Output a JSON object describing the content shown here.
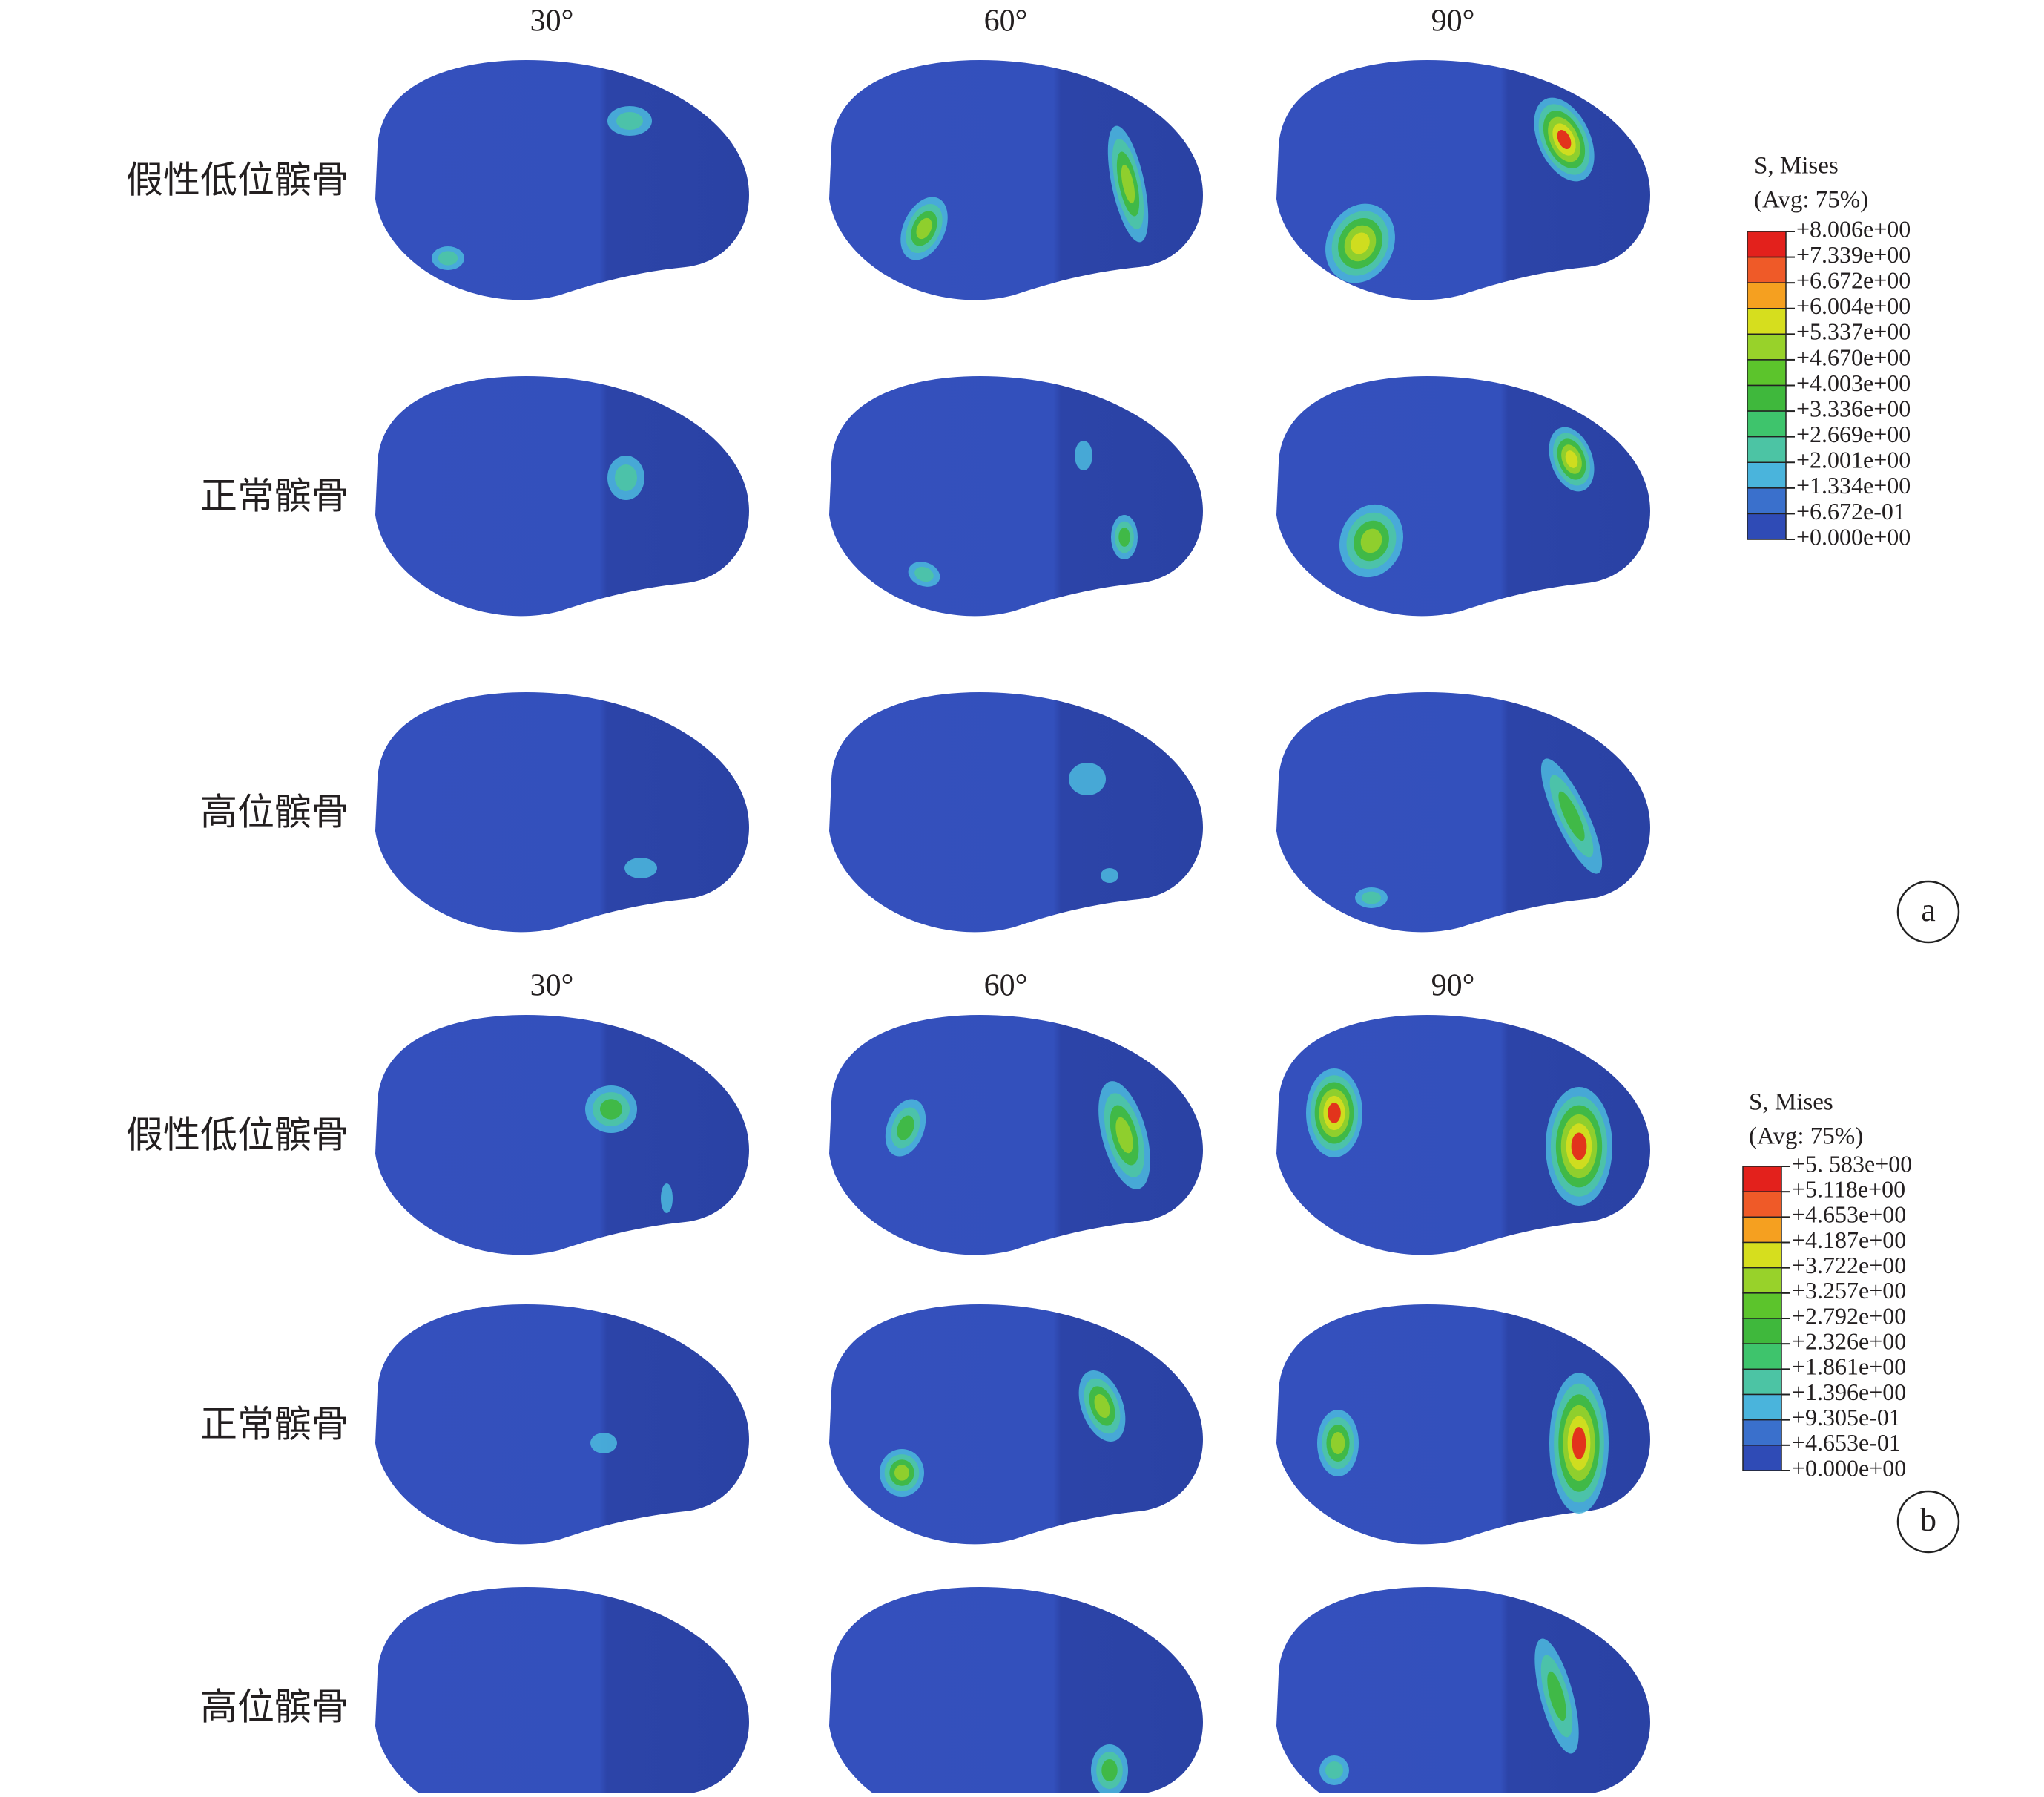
{
  "panels": [
    {
      "label": "a",
      "columns": [
        "30°",
        "60°",
        "90°"
      ],
      "rows": [
        "假性低位髌骨",
        "正常髌骨",
        "高位髌骨"
      ],
      "legend": {
        "title": "S, Mises",
        "subtitle": "(Avg: 75%)",
        "labels": [
          "+8.006e+00",
          "+7.339e+00",
          "+6.672e+00",
          "+6.004e+00",
          "+5.337e+00",
          "+4.670e+00",
          "+4.003e+00",
          "+3.336e+00",
          "+2.669e+00",
          "+2.001e+00",
          "+1.334e+00",
          "+6.672e-01",
          "+0.000e+00"
        ],
        "colors": [
          "#e3211c",
          "#ef5a28",
          "#f5a020",
          "#d6de1e",
          "#98d22a",
          "#5cc42c",
          "#3fb83c",
          "#3ec46c",
          "#4cc4a4",
          "#4ab4dc",
          "#3a70cc",
          "#2f4bb6"
        ]
      }
    },
    {
      "label": "b",
      "columns": [
        "30°",
        "60°",
        "90°"
      ],
      "rows": [
        "假性低位髌骨",
        "正常髌骨",
        "高位髌骨"
      ],
      "legend": {
        "title": "S, Mises",
        "subtitle": "(Avg: 75%)",
        "labels": [
          "+5. 583e+00",
          "+5.118e+00",
          "+4.653e+00",
          "+4.187e+00",
          "+3.722e+00",
          "+3.257e+00",
          "+2.792e+00",
          "+2.326e+00",
          "+1.861e+00",
          "+1.396e+00",
          "+9.305e-01",
          "+4.653e-01",
          "+0.000e+00"
        ],
        "colors": [
          "#e3211c",
          "#ef5a28",
          "#f5a020",
          "#d6de1e",
          "#98d22a",
          "#5cc42c",
          "#3fb83c",
          "#3ec46c",
          "#4cc4a4",
          "#4ab4dc",
          "#3a70cc",
          "#2f4bb6"
        ]
      }
    }
  ]
}
